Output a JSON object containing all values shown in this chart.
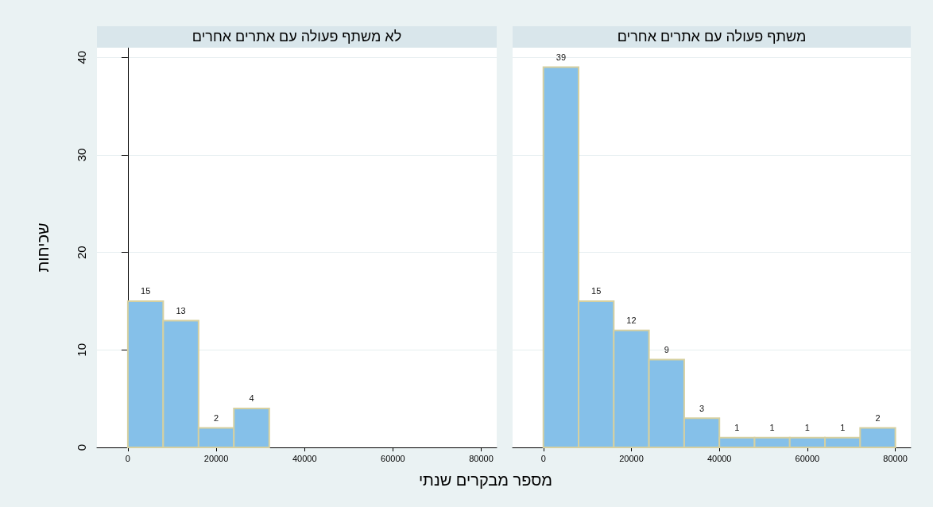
{
  "chart_data": [
    {
      "type": "histogram",
      "title": "לא משתף פעולה עם אתרים אחרים",
      "xlabel": "מספר מבקרים שנתי",
      "ylabel": "שכיחות",
      "bins": [
        0,
        8000,
        16000,
        24000,
        32000
      ],
      "values": [
        15,
        13,
        2,
        4
      ],
      "color": "#85c0e9",
      "xlim": [
        -7000,
        83500
      ],
      "xticks": [
        0,
        20000,
        40000,
        60000,
        80000
      ],
      "ylim": [
        0,
        41
      ],
      "yticks": [
        0,
        10,
        20,
        30,
        40
      ],
      "grid": "y",
      "data_labels": true
    },
    {
      "type": "histogram",
      "title": "משתף פעולה עם אתרים אחרים",
      "bins": [
        0,
        8000,
        16000,
        24000,
        32000,
        40000,
        48000,
        56000,
        64000,
        72000,
        80000
      ],
      "values": [
        39,
        15,
        12,
        9,
        3,
        1,
        1,
        1,
        1,
        2
      ],
      "color": "#85c0e9",
      "xlim": [
        -7000,
        83500
      ],
      "xticks": [
        0,
        20000,
        40000,
        60000,
        80000
      ],
      "ylim": [
        0,
        41
      ],
      "yticks": [
        0,
        10,
        20,
        30,
        40
      ],
      "grid": "y",
      "data_labels": true,
      "tick_labels": "x"
    }
  ]
}
